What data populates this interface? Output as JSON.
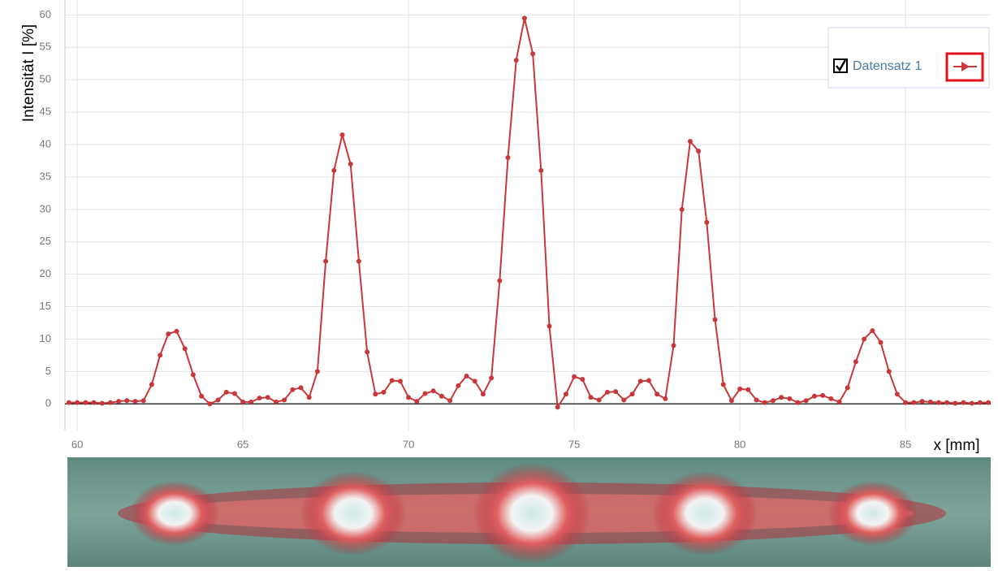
{
  "chart_data": {
    "type": "line",
    "x_label": "x [mm]",
    "y_label": "Intensität I [%]",
    "x": [
      59.75,
      60,
      60.25,
      60.5,
      60.75,
      61,
      61.25,
      61.5,
      61.75,
      62,
      62.25,
      62.5,
      62.75,
      63,
      63.25,
      63.5,
      63.75,
      64,
      64.25,
      64.5,
      64.75,
      65,
      65.25,
      65.5,
      65.75,
      66,
      66.25,
      66.5,
      66.75,
      67,
      67.25,
      67.5,
      67.75,
      68,
      68.25,
      68.5,
      68.75,
      69,
      69.25,
      69.5,
      69.75,
      70,
      70.25,
      70.5,
      70.75,
      71,
      71.25,
      71.5,
      71.75,
      72,
      72.25,
      72.5,
      72.75,
      73,
      73.25,
      73.5,
      73.75,
      74,
      74.25,
      74.5,
      74.75,
      75,
      75.25,
      75.5,
      75.75,
      76,
      76.25,
      76.5,
      76.75,
      77,
      77.25,
      77.5,
      77.75,
      78,
      78.25,
      78.5,
      78.75,
      79,
      79.25,
      79.5,
      79.75,
      80,
      80.25,
      80.5,
      80.75,
      81,
      81.25,
      81.5,
      81.75,
      82,
      82.25,
      82.5,
      82.75,
      83,
      83.25,
      83.5,
      83.75,
      84,
      84.25,
      84.5,
      84.75,
      85,
      85.25,
      85.5,
      85.75,
      86,
      86.25,
      86.5,
      86.75,
      87,
      87.25,
      87.5
    ],
    "series": [
      {
        "name": "Datensatz 1",
        "color": "#c8373a",
        "values": [
          0.2,
          0.2,
          0.2,
          0.2,
          0.1,
          0.2,
          0.4,
          0.5,
          0.4,
          0.5,
          3,
          7.5,
          10.8,
          11.2,
          8.5,
          4.5,
          1.2,
          0,
          0.6,
          1.8,
          1.6,
          0.3,
          0.3,
          0.9,
          1,
          0.3,
          0.6,
          2.2,
          2.5,
          1,
          5,
          22,
          36,
          41.5,
          37,
          22,
          8,
          1.5,
          1.8,
          3.6,
          3.5,
          1,
          0.4,
          1.6,
          2,
          1.2,
          0.5,
          2.8,
          4.3,
          3.5,
          1.5,
          4,
          19,
          38,
          53,
          59.5,
          54,
          36,
          12,
          -0.5,
          1.5,
          4.2,
          3.8,
          1,
          0.6,
          1.8,
          1.9,
          0.6,
          1.5,
          3.5,
          3.6,
          1.5,
          0.8,
          9,
          30,
          40.5,
          39,
          28,
          13,
          3,
          0.5,
          2.3,
          2.2,
          0.6,
          0.2,
          0.5,
          1,
          0.8,
          0.2,
          0.5,
          1.2,
          1.3,
          0.8,
          0.3,
          2.5,
          6.5,
          10,
          11.3,
          9.5,
          5,
          1.5,
          0.2,
          0.2,
          0.4,
          0.3,
          0.2,
          0.2,
          0.1,
          0.2,
          0.1,
          0.2,
          0.2
        ]
      }
    ],
    "xlim": [
      59.63,
      87.57
    ],
    "ylim": [
      -4.1,
      62.3
    ],
    "xticks": [
      60,
      65,
      70,
      75,
      80,
      85
    ],
    "yticks": [
      0,
      5,
      10,
      15,
      20,
      25,
      30,
      35,
      40,
      45,
      50,
      55,
      60
    ],
    "grid": true
  }
}
